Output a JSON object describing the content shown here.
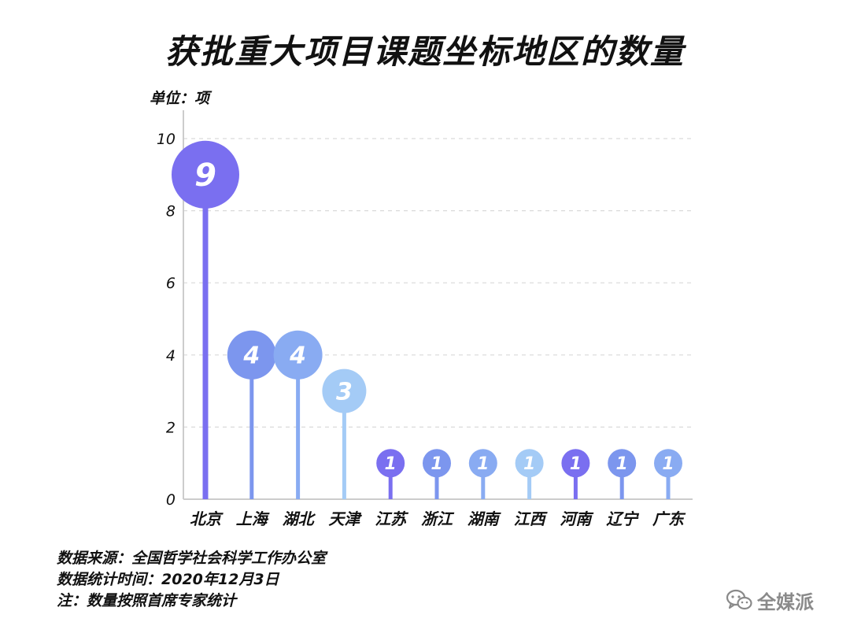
{
  "chart_data": {
    "type": "lollipop",
    "title": "获批重大项目课题坐标地区的数量",
    "unit_label": "单位：项",
    "categories": [
      "北京",
      "上海",
      "湖北",
      "天津",
      "江苏",
      "浙江",
      "湖南",
      "江西",
      "河南",
      "辽宁",
      "广东"
    ],
    "values": [
      9,
      4,
      4,
      3,
      1,
      1,
      1,
      1,
      1,
      1,
      1
    ],
    "colors": [
      "#7A6FF0",
      "#7C96EE",
      "#89ABF2",
      "#A4CBF6",
      "#7A6FF0",
      "#7C96EE",
      "#89ABF2",
      "#A4CBF6",
      "#7A6FF0",
      "#7C96EE",
      "#89ABF2"
    ],
    "yticks": [
      0,
      2,
      4,
      6,
      8,
      10
    ],
    "ylim": [
      0,
      10
    ],
    "grid": true
  },
  "footnotes": {
    "source": "数据来源：全国哲学社会科学工作办公室",
    "date": "数据统计时间：2020年12月3日",
    "note": "注：数量按照首席专家统计"
  },
  "brand": {
    "name": "全媒派",
    "icon": "wechat-icon",
    "color": "#8a8a8a"
  }
}
